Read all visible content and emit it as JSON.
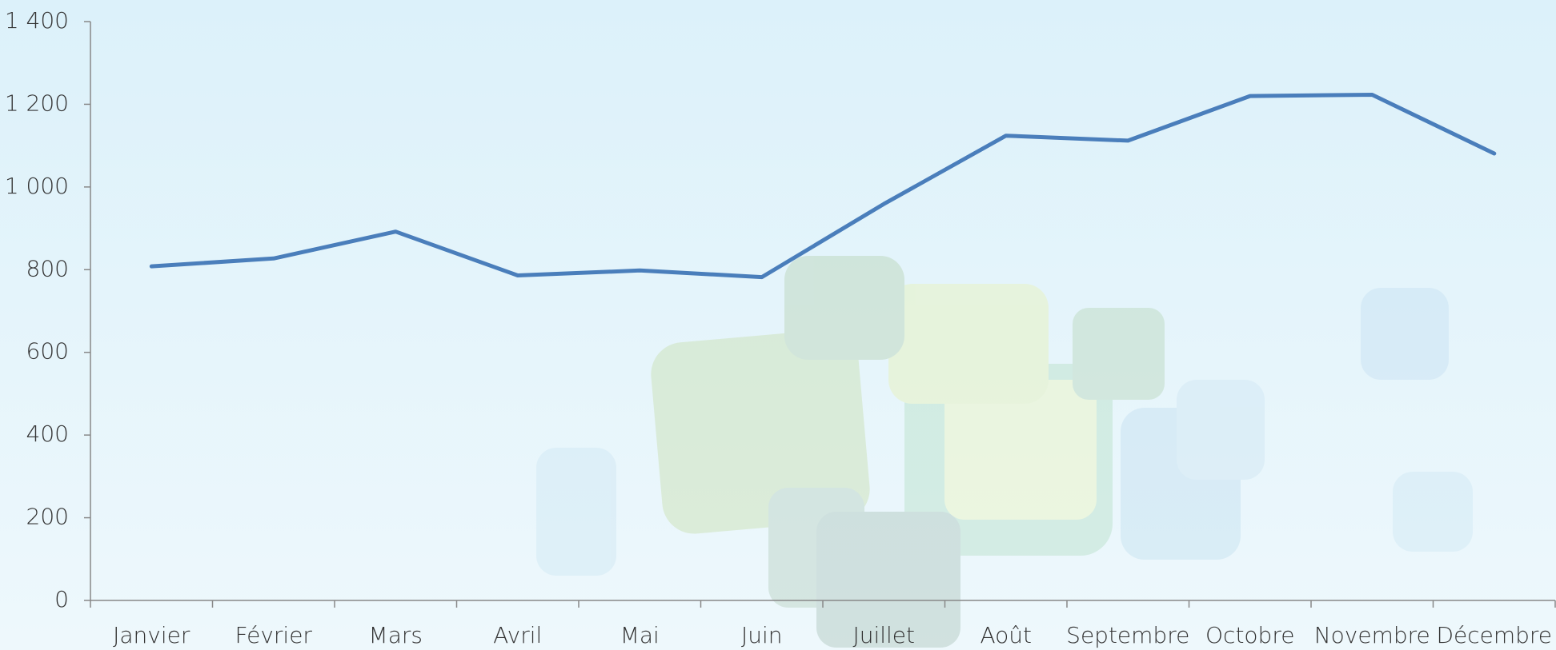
{
  "chart_data": {
    "type": "line",
    "categories": [
      "Janvier",
      "Février",
      "Mars",
      "Avril",
      "Mai",
      "Juin",
      "Juillet",
      "Août",
      "Septembre",
      "Octobre",
      "Novembre",
      "Décembre"
    ],
    "series": [
      {
        "color": "#4a7ebb",
        "values": [
          808,
          827,
          892,
          786,
          798,
          782,
          959,
          1124,
          1112,
          1220,
          1223,
          1081
        ]
      }
    ],
    "ylim": [
      0,
      1400
    ],
    "yticks": [
      0,
      200,
      400,
      600,
      800,
      {
        "value": 1000,
        "label": "1 000"
      },
      {
        "value": 1200,
        "label": "1 200"
      },
      {
        "value": 1400,
        "label": "1 400"
      }
    ]
  }
}
